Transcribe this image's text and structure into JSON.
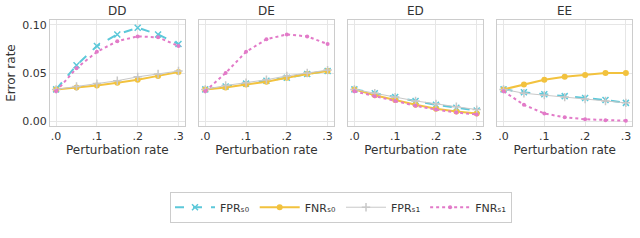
{
  "chart_data": [
    {
      "type": "line",
      "title": "DD",
      "x_label": "Perturbation rate",
      "y_label": "Error rate",
      "legend": "bottom",
      "grid": true,
      "tick_labels": true,
      "x": [
        0,
        0.05,
        0.1,
        0.15,
        0.2,
        0.25,
        0.3
      ],
      "xlim": [
        -0.015,
        0.315
      ],
      "xticks": [
        {
          "value": 0,
          "label": ".0"
        },
        {
          "value": 0.1,
          "label": ".1"
        },
        {
          "value": 0.2,
          "label": ".2"
        },
        {
          "value": 0.3,
          "label": ".3"
        }
      ],
      "ylim": [
        -0.005,
        0.105
      ],
      "yticks": [
        {
          "value": 0,
          "label": "0.00"
        },
        {
          "value": 0.05,
          "label": "0.05"
        },
        {
          "value": 0.1,
          "label": "0.10"
        }
      ],
      "series": [
        {
          "name": "FPRₛ₀",
          "color": "#5cc8d9",
          "marker": "x",
          "line_style": "dash",
          "values": [
            0.033,
            0.058,
            0.078,
            0.09,
            0.097,
            0.09,
            0.08
          ]
        },
        {
          "name": "FNRₛ₀",
          "color": "#f2c23e",
          "marker": "circle",
          "line_style": "solid",
          "values": [
            0.033,
            0.035,
            0.037,
            0.04,
            0.043,
            0.047,
            0.051
          ]
        },
        {
          "name": "FPRₛ₁",
          "color": "#c8c8c8",
          "marker": "cross",
          "line_style": "solid",
          "values": [
            0.033,
            0.036,
            0.039,
            0.042,
            0.046,
            0.049,
            0.052
          ]
        },
        {
          "name": "FNRₛ₁",
          "color": "#e27ac8",
          "marker": "circle",
          "line_style": "dot",
          "values": [
            0.031,
            0.055,
            0.072,
            0.083,
            0.088,
            0.087,
            0.078
          ]
        }
      ]
    },
    {
      "type": "line",
      "title": "DE",
      "x_label": "Perturbation rate",
      "grid": true,
      "tick_labels": "x",
      "x": [
        0,
        0.05,
        0.1,
        0.15,
        0.2,
        0.25,
        0.3
      ],
      "xlim": [
        -0.015,
        0.315
      ],
      "xticks": [
        {
          "value": 0,
          "label": ".0"
        },
        {
          "value": 0.1,
          "label": ".1"
        },
        {
          "value": 0.2,
          "label": ".2"
        },
        {
          "value": 0.3,
          "label": ".3"
        }
      ],
      "ylim": [
        -0.005,
        0.105
      ],
      "yticks": [
        {
          "value": 0,
          "label": "0.00"
        },
        {
          "value": 0.05,
          "label": "0.05"
        },
        {
          "value": 0.1,
          "label": "0.10"
        }
      ],
      "series": [
        {
          "name": "FPRₛ₀",
          "color": "#5cc8d9",
          "marker": "x",
          "line_style": "dash",
          "values": [
            0.033,
            0.036,
            0.039,
            0.042,
            0.045,
            0.049,
            0.052
          ]
        },
        {
          "name": "FNRₛ₀",
          "color": "#f2c23e",
          "marker": "circle",
          "line_style": "solid",
          "values": [
            0.033,
            0.035,
            0.038,
            0.041,
            0.045,
            0.049,
            0.052
          ]
        },
        {
          "name": "FPRₛ₁",
          "color": "#c8c8c8",
          "marker": "cross",
          "line_style": "solid",
          "values": [
            0.033,
            0.037,
            0.04,
            0.043,
            0.047,
            0.05,
            0.053
          ]
        },
        {
          "name": "FNRₛ₁",
          "color": "#e27ac8",
          "marker": "circle",
          "line_style": "dot",
          "values": [
            0.031,
            0.05,
            0.072,
            0.085,
            0.09,
            0.088,
            0.08
          ]
        }
      ]
    },
    {
      "type": "line",
      "title": "ED",
      "x_label": "Perturbation rate",
      "grid": true,
      "tick_labels": "x",
      "x": [
        0,
        0.05,
        0.1,
        0.15,
        0.2,
        0.25,
        0.3
      ],
      "xlim": [
        -0.015,
        0.315
      ],
      "xticks": [
        {
          "value": 0,
          "label": ".0"
        },
        {
          "value": 0.1,
          "label": ".1"
        },
        {
          "value": 0.2,
          "label": ".2"
        },
        {
          "value": 0.3,
          "label": ".3"
        }
      ],
      "ylim": [
        -0.005,
        0.105
      ],
      "yticks": [
        {
          "value": 0,
          "label": "0.00"
        },
        {
          "value": 0.05,
          "label": "0.05"
        },
        {
          "value": 0.1,
          "label": "0.10"
        }
      ],
      "series": [
        {
          "name": "FPRₛ₀",
          "color": "#5cc8d9",
          "marker": "x",
          "line_style": "dash",
          "values": [
            0.033,
            0.029,
            0.025,
            0.021,
            0.017,
            0.014,
            0.011
          ]
        },
        {
          "name": "FNRₛ₀",
          "color": "#f2c23e",
          "marker": "circle",
          "line_style": "solid",
          "values": [
            0.033,
            0.027,
            0.022,
            0.017,
            0.013,
            0.01,
            0.008
          ]
        },
        {
          "name": "FPRₛ₁",
          "color": "#c8c8c8",
          "marker": "cross",
          "line_style": "solid",
          "values": [
            0.033,
            0.029,
            0.025,
            0.021,
            0.018,
            0.015,
            0.012
          ]
        },
        {
          "name": "FNRₛ₁",
          "color": "#e27ac8",
          "marker": "circle",
          "line_style": "dot",
          "values": [
            0.031,
            0.026,
            0.021,
            0.016,
            0.012,
            0.009,
            0.007
          ]
        }
      ]
    },
    {
      "type": "line",
      "title": "EE",
      "x_label": "Perturbation rate",
      "grid": true,
      "tick_labels": "x",
      "x": [
        0,
        0.05,
        0.1,
        0.15,
        0.2,
        0.25,
        0.3
      ],
      "xlim": [
        -0.015,
        0.315
      ],
      "xticks": [
        {
          "value": 0,
          "label": ".0"
        },
        {
          "value": 0.1,
          "label": ".1"
        },
        {
          "value": 0.2,
          "label": ".2"
        },
        {
          "value": 0.3,
          "label": ".3"
        }
      ],
      "ylim": [
        -0.005,
        0.105
      ],
      "yticks": [
        {
          "value": 0,
          "label": "0.00"
        },
        {
          "value": 0.05,
          "label": "0.05"
        },
        {
          "value": 0.1,
          "label": "0.10"
        }
      ],
      "series": [
        {
          "name": "FPRₛ₀",
          "color": "#5cc8d9",
          "marker": "x",
          "line_style": "dash",
          "values": [
            0.033,
            0.03,
            0.028,
            0.026,
            0.024,
            0.022,
            0.019
          ]
        },
        {
          "name": "FNRₛ₀",
          "color": "#f2c23e",
          "marker": "circle",
          "line_style": "solid",
          "values": [
            0.033,
            0.038,
            0.043,
            0.046,
            0.048,
            0.05,
            0.05
          ]
        },
        {
          "name": "FPRₛ₁",
          "color": "#c8c8c8",
          "marker": "cross",
          "line_style": "solid",
          "values": [
            0.033,
            0.029,
            0.027,
            0.025,
            0.023,
            0.021,
            0.019
          ]
        },
        {
          "name": "FNRₛ₁",
          "color": "#e27ac8",
          "marker": "circle",
          "line_style": "dot",
          "values": [
            0.031,
            0.017,
            0.008,
            0.004,
            0.002,
            0.001,
            0.0005
          ]
        }
      ]
    }
  ]
}
